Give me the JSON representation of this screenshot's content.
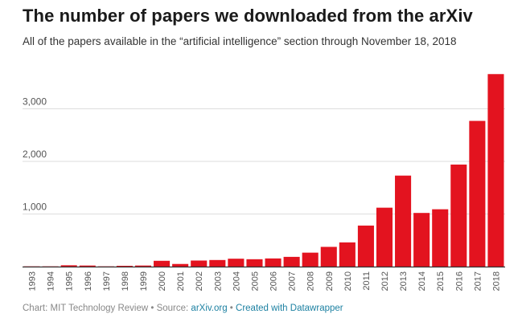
{
  "title": "The number of papers we downloaded from the arXiv",
  "subtitle": "All of the papers available in the “artificial intelligence” section through November 18, 2018",
  "footer": {
    "chart_credit": "Chart: MIT Technology Review",
    "separator": " • ",
    "source_prefix": "Source: ",
    "source_link": "arXiv.org",
    "separator2": " • ",
    "created_with": "Created with Datawrapper"
  },
  "colors": {
    "bar": "#e3131f",
    "gridline": "#dddddd",
    "baseline": "#333333",
    "tick_label": "#555555",
    "link": "#1d81a2"
  },
  "chart_data": {
    "type": "bar",
    "categories": [
      "1993",
      "1994",
      "1995",
      "1996",
      "1997",
      "1998",
      "1999",
      "2000",
      "2001",
      "2002",
      "2003",
      "2004",
      "2005",
      "2006",
      "2007",
      "2008",
      "2009",
      "2010",
      "2011",
      "2012",
      "2013",
      "2014",
      "2015",
      "2016",
      "2017",
      "2018"
    ],
    "values": [
      5,
      5,
      25,
      20,
      5,
      15,
      20,
      110,
      50,
      115,
      125,
      150,
      140,
      155,
      185,
      265,
      375,
      460,
      780,
      1120,
      1730,
      1020,
      1090,
      1940,
      2770,
      3660
    ],
    "yticks": [
      {
        "value": 1000,
        "label": "1,000"
      },
      {
        "value": 2000,
        "label": "2,000"
      },
      {
        "value": 3000,
        "label": "3,000"
      }
    ],
    "ylim": [
      0,
      3700
    ],
    "grid": true
  }
}
